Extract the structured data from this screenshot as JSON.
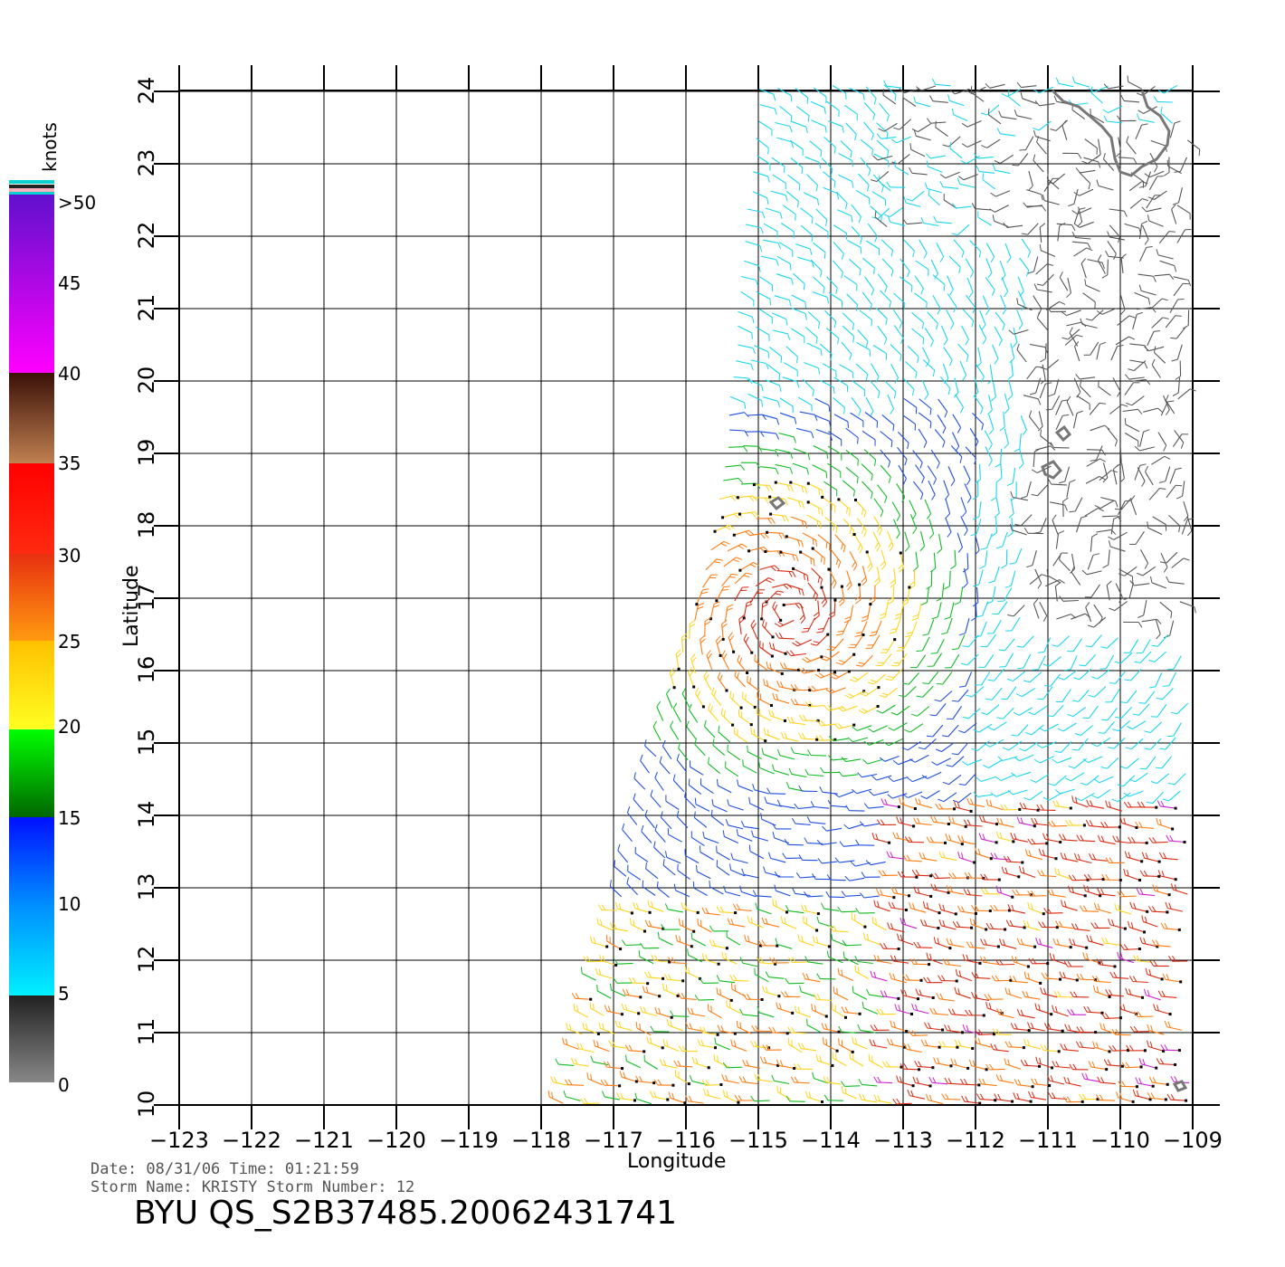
{
  "legend": {
    "unit_label": "knots",
    "labels": [
      ">50",
      "45",
      "40",
      "35",
      "30",
      "25",
      "20",
      "15",
      "10",
      "5",
      "0"
    ],
    "colors": {
      "calm": "#555555",
      "light": "#18d6ee",
      "moderate": "#1e4ee0",
      "fresh": "#11bb22",
      "strong": "#ffd41a",
      "gale": "#ff7a10",
      "storm": "#d82a10",
      "violent": "#cc22cc"
    }
  },
  "axes": {
    "x_label": "Longitude",
    "y_label": "Latitude",
    "x_ticks": [
      "−123",
      "−122",
      "−121",
      "−120",
      "−119",
      "−118",
      "−117",
      "−116",
      "−115",
      "−114",
      "−113",
      "−112",
      "−111",
      "−110",
      "−109"
    ],
    "y_ticks": [
      "24",
      "23",
      "22",
      "21",
      "20",
      "19",
      "18",
      "17",
      "16",
      "15",
      "14",
      "13",
      "12",
      "11",
      "10"
    ],
    "lon_range": [
      -123,
      -109
    ],
    "lat_range": [
      10,
      24
    ]
  },
  "info": {
    "line1": "Date: 08/31/06   Time: 01:21:59",
    "line2": "Storm Name: KRISTY   Storm Number: 12",
    "title": "BYU QS_S2B37485.20062431741"
  },
  "storm_center": {
    "lon": -114.6,
    "lat": 16.8
  }
}
